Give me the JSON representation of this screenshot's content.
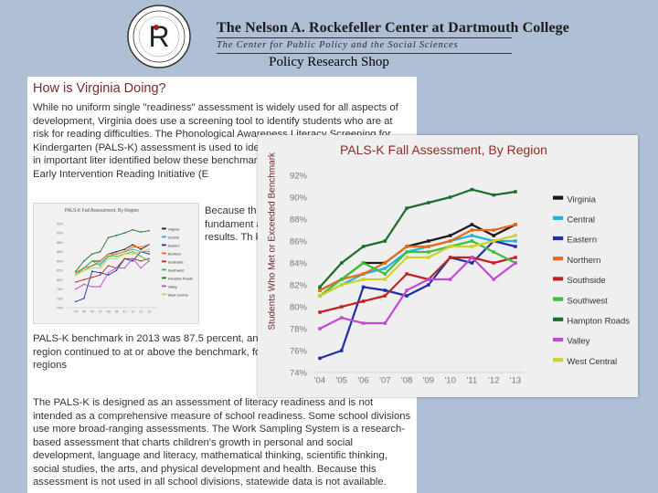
{
  "header": {
    "title": "The Nelson A. Rockefeller Center at Dartmouth College",
    "subtitle": "The Center for Public Policy and the Social Sciences",
    "seal_letter": "R",
    "shop": "Policy Research Shop"
  },
  "document": {
    "heading": "How is Virginia Doing?",
    "para1": "While no uniform single \"readiness\" assessment is widely used for all aspects of development, Virginia does use a screening tool to identify students who are at risk for reading difficulties. The Phonological Awareness Literacy Screening for Kindergarten (PALS-K) assessment is used to ide kindergarten-level expectations in important liter identified below these benchmarks and are provided v Virginia's Early Intervention Reading Initiative (E",
    "para1b": "Because th conducted results refl come to sc fundament assessment exception improved c results. Th kindergart",
    "para1c": "PALS-K benchmark in 2013 was 87.5 percent, an in 2012. The Hampton Roads region continued to at or above the benchmark, followed by the Nort (86.5%) regions",
    "para2": "The PALS-K is designed as an assessment of literacy readiness and is not intended as a comprehensive measure of school readiness. Some school divisions use more broad-ranging assessments. The Work Sampling System is a research-based assessment that charts children's growth in personal and social development, language and literacy, mathematical thinking, scientific thinking, social studies, the arts, and physical development and health. Because this assessment is not used in all school divisions, statewide data is not available.",
    "thumb_title": "PALS-K Fall Assessment, By Region"
  },
  "colors": {
    "background": "#aebfd6",
    "title": "#8b2f28"
  },
  "chart_data": {
    "type": "line",
    "title": "PALS-K Fall Assessment, By Region",
    "ylabel": "Students Who Met or Exceeded Benchmark",
    "xlabel": "",
    "x": [
      "'04",
      "'05",
      "'06",
      "'07",
      "'08",
      "'09",
      "'10",
      "'11",
      "'12",
      "'13"
    ],
    "yticks": [
      "74%",
      "76%",
      "78%",
      "80%",
      "82%",
      "84%",
      "86%",
      "88%",
      "90%",
      "92%"
    ],
    "ylim": [
      74,
      92
    ],
    "grid": false,
    "legend": "right",
    "series": [
      {
        "name": "Virginia",
        "color": "#1a1a1a",
        "values": [
          81.5,
          82.5,
          84.0,
          84.0,
          85.5,
          86.0,
          86.5,
          87.5,
          86.5,
          87.5
        ]
      },
      {
        "name": "Central",
        "color": "#1fb4de",
        "values": [
          81.0,
          82.0,
          83.0,
          83.5,
          85.0,
          85.5,
          86.0,
          86.5,
          86.0,
          86.0
        ]
      },
      {
        "name": "Eastern",
        "color": "#1c2fa6",
        "values": [
          75.3,
          76.0,
          81.8,
          81.5,
          81.0,
          82.0,
          84.5,
          84.0,
          86.0,
          85.5
        ]
      },
      {
        "name": "Northern",
        "color": "#ea6a1a",
        "values": [
          81.5,
          82.5,
          83.0,
          84.0,
          85.5,
          85.5,
          86.0,
          87.0,
          87.0,
          87.5
        ]
      },
      {
        "name": "Southside",
        "color": "#c42222",
        "values": [
          79.5,
          80.0,
          80.5,
          81.0,
          83.0,
          82.5,
          84.5,
          84.5,
          84.0,
          84.5
        ]
      },
      {
        "name": "Southwest",
        "color": "#3cbf3c",
        "values": [
          81.0,
          82.5,
          84.0,
          83.0,
          85.0,
          85.0,
          85.5,
          86.0,
          85.0,
          84.0
        ]
      },
      {
        "name": "Hampton Roads",
        "color": "#1a6e2a",
        "values": [
          81.8,
          84.0,
          85.5,
          86.0,
          89.0,
          89.5,
          90.0,
          90.7,
          90.2,
          90.5
        ]
      },
      {
        "name": "Valley",
        "color": "#c04ad6",
        "values": [
          78.0,
          79.0,
          78.5,
          78.5,
          81.5,
          82.5,
          82.5,
          84.5,
          82.5,
          84.0
        ]
      },
      {
        "name": "West Central",
        "color": "#cfd12a",
        "values": [
          81.0,
          82.0,
          82.5,
          82.5,
          84.5,
          84.5,
          85.5,
          85.5,
          86.0,
          86.5
        ]
      }
    ]
  }
}
